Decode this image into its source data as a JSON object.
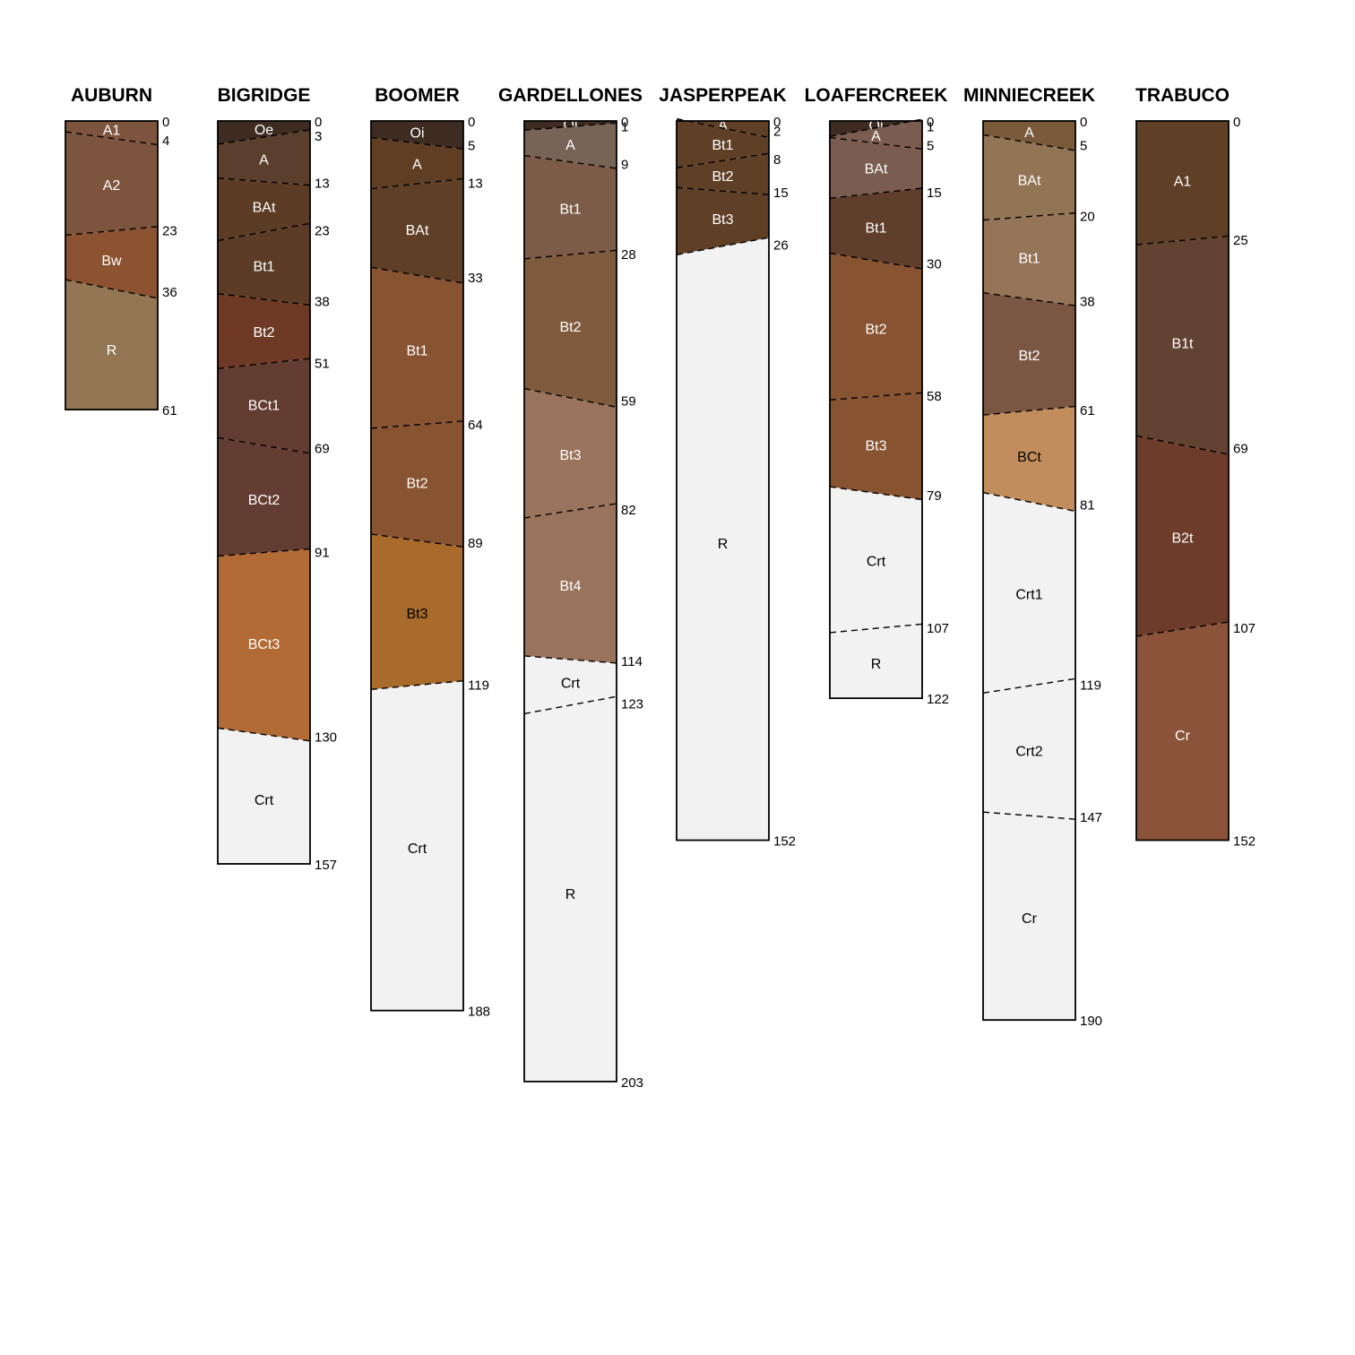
{
  "chart_data": {
    "type": "soil-profile-sketch",
    "title": "",
    "depth_unit": "",
    "depth_range": [
      0,
      203
    ],
    "boundary_style": "dashed",
    "profiles": [
      {
        "name": "AUBURN",
        "horizons": [
          {
            "name": "A1",
            "top": 0,
            "bottom": 4,
            "color": "#7d553e",
            "label_color": "#ffffff"
          },
          {
            "name": "A2",
            "top": 4,
            "bottom": 23,
            "color": "#7d553e",
            "label_color": "#ffffff"
          },
          {
            "name": "Bw",
            "top": 23,
            "bottom": 36,
            "color": "#8b5331",
            "label_color": "#ffffff"
          },
          {
            "name": "R",
            "top": 36,
            "bottom": 61,
            "color": "#937653",
            "label_color": "#ffffff"
          }
        ]
      },
      {
        "name": "BIGRIDGE",
        "horizons": [
          {
            "name": "Oe",
            "top": 0,
            "bottom": 3,
            "color": "#3e2b22",
            "label_color": "#ffffff"
          },
          {
            "name": "A",
            "top": 3,
            "bottom": 13,
            "color": "#5a3f2d",
            "label_color": "#ffffff"
          },
          {
            "name": "BAt",
            "top": 13,
            "bottom": 23,
            "color": "#5c3c25",
            "label_color": "#ffffff"
          },
          {
            "name": "Bt1",
            "top": 23,
            "bottom": 38,
            "color": "#5c3c26",
            "label_color": "#ffffff"
          },
          {
            "name": "Bt2",
            "top": 38,
            "bottom": 51,
            "color": "#6e3a26",
            "label_color": "#ffffff"
          },
          {
            "name": "BCt1",
            "top": 51,
            "bottom": 69,
            "color": "#643d32",
            "label_color": "#ffffff"
          },
          {
            "name": "BCt2",
            "top": 69,
            "bottom": 91,
            "color": "#643d32",
            "label_color": "#ffffff"
          },
          {
            "name": "BCt3",
            "top": 91,
            "bottom": 130,
            "color": "#b36b36",
            "label_color": "#ffffff"
          },
          {
            "name": "Crt",
            "top": 130,
            "bottom": 157,
            "color": "#f2f2f2",
            "label_color": "#000000"
          }
        ]
      },
      {
        "name": "BOOMER",
        "horizons": [
          {
            "name": "Oi",
            "top": 0,
            "bottom": 5,
            "color": "#3e2b22",
            "label_color": "#ffffff"
          },
          {
            "name": "A",
            "top": 5,
            "bottom": 13,
            "color": "#5f3e23",
            "label_color": "#ffffff"
          },
          {
            "name": "BAt",
            "top": 13,
            "bottom": 33,
            "color": "#5f4027",
            "label_color": "#ffffff"
          },
          {
            "name": "Bt1",
            "top": 33,
            "bottom": 64,
            "color": "#885331",
            "label_color": "#ffffff"
          },
          {
            "name": "Bt2",
            "top": 64,
            "bottom": 89,
            "color": "#885331",
            "label_color": "#ffffff"
          },
          {
            "name": "Bt3",
            "top": 89,
            "bottom": 119,
            "color": "#a86b2b",
            "label_color": "#000000"
          },
          {
            "name": "Crt",
            "top": 119,
            "bottom": 188,
            "color": "#f2f2f2",
            "label_color": "#000000"
          }
        ]
      },
      {
        "name": "GARDELLONES",
        "horizons": [
          {
            "name": "Oi",
            "top": 0,
            "bottom": 1,
            "color": "#3e2b22",
            "label_color": "#ffffff"
          },
          {
            "name": "A",
            "top": 1,
            "bottom": 9,
            "color": "#786357",
            "label_color": "#ffffff"
          },
          {
            "name": "Bt1",
            "top": 9,
            "bottom": 28,
            "color": "#7c5c48",
            "label_color": "#ffffff"
          },
          {
            "name": "Bt2",
            "top": 28,
            "bottom": 59,
            "color": "#7f5a3c",
            "label_color": "#ffffff"
          },
          {
            "name": "Bt3",
            "top": 59,
            "bottom": 82,
            "color": "#9a735c",
            "label_color": "#ffffff"
          },
          {
            "name": "Bt4",
            "top": 82,
            "bottom": 114,
            "color": "#9a735c",
            "label_color": "#ffffff"
          },
          {
            "name": "Crt",
            "top": 114,
            "bottom": 123,
            "color": "#f2f2f2",
            "label_color": "#000000"
          },
          {
            "name": "R",
            "top": 123,
            "bottom": 203,
            "color": "#f2f2f2",
            "label_color": "#000000"
          }
        ]
      },
      {
        "name": "JASPERPEAK",
        "horizons": [
          {
            "name": "A",
            "top": 0,
            "bottom": 2,
            "color": "#5f4027",
            "label_color": "#ffffff"
          },
          {
            "name": "Bt1",
            "top": 2,
            "bottom": 8,
            "color": "#5f4027",
            "label_color": "#ffffff"
          },
          {
            "name": "Bt2",
            "top": 8,
            "bottom": 15,
            "color": "#5f4027",
            "label_color": "#ffffff"
          },
          {
            "name": "Bt3",
            "top": 15,
            "bottom": 26,
            "color": "#5f4027",
            "label_color": "#ffffff"
          },
          {
            "name": "R",
            "top": 26,
            "bottom": 152,
            "color": "#f2f2f2",
            "label_color": "#000000"
          }
        ]
      },
      {
        "name": "LOAFERCREEK",
        "horizons": [
          {
            "name": "Oi",
            "top": 0,
            "bottom": 1,
            "color": "#3e2b22",
            "label_color": "#ffffff"
          },
          {
            "name": "A",
            "top": 1,
            "bottom": 5,
            "color": "#7a5c50",
            "label_color": "#ffffff"
          },
          {
            "name": "BAt",
            "top": 5,
            "bottom": 15,
            "color": "#7a5c50",
            "label_color": "#ffffff"
          },
          {
            "name": "Bt1",
            "top": 15,
            "bottom": 30,
            "color": "#5f3e2b",
            "label_color": "#ffffff"
          },
          {
            "name": "Bt2",
            "top": 30,
            "bottom": 58,
            "color": "#885331",
            "label_color": "#ffffff"
          },
          {
            "name": "Bt3",
            "top": 58,
            "bottom": 79,
            "color": "#885331",
            "label_color": "#ffffff"
          },
          {
            "name": "Crt",
            "top": 79,
            "bottom": 107,
            "color": "#f2f2f2",
            "label_color": "#000000"
          },
          {
            "name": "R",
            "top": 107,
            "bottom": 122,
            "color": "#f2f2f2",
            "label_color": "#000000"
          }
        ]
      },
      {
        "name": "MINNIECREEK",
        "horizons": [
          {
            "name": "A",
            "top": 0,
            "bottom": 5,
            "color": "#7a5a3a",
            "label_color": "#ffffff"
          },
          {
            "name": "BAt",
            "top": 5,
            "bottom": 20,
            "color": "#927554",
            "label_color": "#ffffff"
          },
          {
            "name": "Bt1",
            "top": 20,
            "bottom": 38,
            "color": "#967458",
            "label_color": "#ffffff"
          },
          {
            "name": "Bt2",
            "top": 38,
            "bottom": 61,
            "color": "#7b5642",
            "label_color": "#ffffff"
          },
          {
            "name": "BCt",
            "top": 61,
            "bottom": 81,
            "color": "#c28d5c",
            "label_color": "#000000"
          },
          {
            "name": "Crt1",
            "top": 81,
            "bottom": 119,
            "color": "#f2f2f2",
            "label_color": "#000000"
          },
          {
            "name": "Crt2",
            "top": 119,
            "bottom": 147,
            "color": "#f2f2f2",
            "label_color": "#000000"
          },
          {
            "name": "Cr",
            "top": 147,
            "bottom": 190,
            "color": "#f2f2f2",
            "label_color": "#000000"
          }
        ]
      },
      {
        "name": "TRABUCO",
        "horizons": [
          {
            "name": "A1",
            "top": 0,
            "bottom": 25,
            "color": "#5f4027",
            "label_color": "#ffffff"
          },
          {
            "name": "B1t",
            "top": 25,
            "bottom": 69,
            "color": "#624230",
            "label_color": "#ffffff"
          },
          {
            "name": "B2t",
            "top": 69,
            "bottom": 107,
            "color": "#6e3c2a",
            "label_color": "#ffffff"
          },
          {
            "name": "Cr",
            "top": 107,
            "bottom": 152,
            "color": "#8b5339",
            "label_color": "#ffffff"
          }
        ]
      }
    ]
  }
}
